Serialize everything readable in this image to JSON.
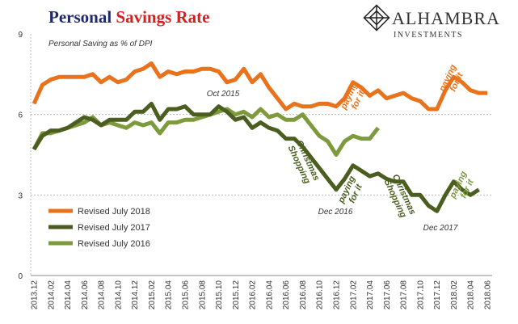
{
  "chart_data": {
    "type": "line",
    "title": [
      "Personal",
      "Savings Rate"
    ],
    "subtitle": "Personal Saving as % of DPI",
    "logo": {
      "name": "ALHAMBRA",
      "tagline": "INVESTMENTS"
    },
    "categories": [
      "2013.12",
      null,
      "2014.02",
      null,
      "2014.04",
      null,
      "2014.06",
      null,
      "2014.08",
      null,
      "2014.10",
      null,
      "2014.12",
      null,
      "2015.02",
      null,
      "2015.04",
      null,
      "2015.06",
      null,
      "2015.08",
      null,
      "2015.10",
      null,
      "2015.12",
      null,
      "2016.02",
      null,
      "2016.04",
      null,
      "2016.06",
      null,
      "2016.08",
      null,
      "2016.10",
      null,
      "2016.12",
      null,
      "2017.02",
      null,
      "2017.04",
      null,
      "2017.06",
      null,
      "2017.08",
      null,
      "2017.10",
      null,
      "2017.12",
      null,
      "2018.02",
      null,
      "2018.04",
      null,
      "2018.06"
    ],
    "series": [
      {
        "name": "Revised July 2018",
        "color": "#e8731c",
        "values": [
          6.4,
          7.1,
          7.3,
          7.4,
          7.4,
          7.4,
          7.4,
          7.5,
          7.2,
          7.4,
          7.2,
          7.3,
          7.6,
          7.7,
          7.9,
          7.4,
          7.6,
          7.5,
          7.6,
          7.6,
          7.7,
          7.7,
          7.6,
          7.2,
          7.3,
          7.7,
          7.2,
          7.5,
          7.0,
          6.6,
          6.2,
          6.4,
          6.3,
          6.3,
          6.4,
          6.4,
          6.3,
          6.6,
          7.2,
          7.0,
          6.7,
          6.9,
          6.6,
          6.7,
          6.8,
          6.6,
          6.5,
          6.2,
          6.2,
          6.9,
          7.4,
          7.2,
          6.9,
          6.8,
          6.8
        ]
      },
      {
        "name": "Revised July 2017",
        "color": "#4b5e1f",
        "values": [
          4.7,
          5.2,
          5.4,
          5.4,
          5.5,
          5.7,
          5.9,
          5.8,
          5.6,
          5.8,
          5.8,
          5.8,
          6.1,
          6.1,
          6.4,
          5.8,
          6.2,
          6.2,
          6.3,
          6.0,
          6.0,
          6.0,
          6.3,
          6.1,
          5.8,
          5.9,
          5.5,
          5.7,
          5.5,
          5.4,
          5.1,
          5.1,
          4.8,
          4.4,
          4.0,
          3.6,
          3.2,
          3.6,
          4.1,
          3.9,
          3.7,
          3.8,
          3.6,
          3.5,
          3.5,
          3.0,
          3.0,
          2.6,
          2.4,
          3.0,
          3.5,
          3.2,
          3.0,
          3.2,
          null
        ]
      },
      {
        "name": "Revised July 2016",
        "color": "#7d9a3c",
        "values": [
          4.7,
          5.3,
          5.3,
          5.4,
          5.5,
          5.6,
          5.7,
          5.9,
          5.6,
          5.7,
          5.6,
          5.5,
          5.7,
          5.6,
          5.7,
          5.3,
          5.7,
          5.7,
          5.8,
          5.8,
          5.9,
          6.0,
          6.1,
          6.2,
          6.0,
          6.1,
          5.9,
          6.2,
          5.9,
          6.0,
          5.8,
          5.8,
          6.0,
          5.6,
          5.2,
          5.0,
          4.5,
          5.0,
          5.2,
          5.1,
          5.1,
          5.5,
          null,
          null,
          null,
          null,
          null,
          null,
          null,
          null,
          null,
          null,
          null,
          null,
          null
        ]
      }
    ],
    "ylim": [
      0,
      9
    ],
    "yticks": [
      0,
      3,
      6,
      9
    ],
    "grid": true,
    "legend": "left",
    "annotations": [
      {
        "lines": [
          "Oct 2015"
        ],
        "color": "#333333"
      },
      {
        "lines": [
          "Christmas",
          "Shopping"
        ],
        "color": "#4b5e1f"
      },
      {
        "lines": [
          "paying",
          "for it"
        ],
        "color": "#e8731c"
      },
      {
        "lines": [
          "paying",
          "for it"
        ],
        "color": "#4b5e1f"
      },
      {
        "lines": [
          "Dec 2016"
        ],
        "color": "#333333"
      },
      {
        "lines": [
          "Christmas",
          "Shopping"
        ],
        "color": "#4b5e1f"
      },
      {
        "lines": [
          "Dec 2017"
        ],
        "color": "#333333"
      },
      {
        "lines": [
          "paying",
          "for it"
        ],
        "color": "#e8731c"
      },
      {
        "lines": [
          "paying",
          "for it"
        ],
        "color": "#7d9a3c"
      }
    ]
  }
}
